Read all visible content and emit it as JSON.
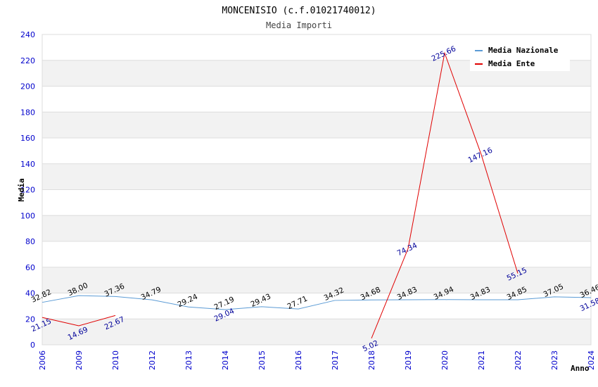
{
  "chart_data": {
    "type": "line",
    "title": "MONCENISIO (c.f.01021740012)",
    "subtitle": "Media Importi",
    "xlabel": "Anno",
    "ylabel": "Media",
    "ylim": [
      0,
      240
    ],
    "yticks": [
      0,
      20,
      40,
      60,
      80,
      100,
      120,
      140,
      160,
      180,
      200,
      220,
      240
    ],
    "categories": [
      "2006",
      "2009",
      "2010",
      "2012",
      "2013",
      "2014",
      "2015",
      "2016",
      "2017",
      "2018",
      "2019",
      "2020",
      "2021",
      "2022",
      "2023",
      "2024"
    ],
    "series": [
      {
        "name": "Media Nazionale",
        "color": "#5b9bd5",
        "values": [
          32.82,
          38.0,
          37.36,
          34.79,
          29.24,
          27.19,
          29.43,
          27.71,
          34.32,
          34.68,
          34.83,
          34.94,
          34.83,
          34.85,
          37.05,
          36.46
        ],
        "labels": [
          "32.82",
          "38.00",
          "37.36",
          "34.79",
          "29.24",
          "27.19",
          "29.43",
          "27.71",
          "34.32",
          "34.68",
          "34.83",
          "34.94",
          "34.83",
          "34.85",
          "37.05",
          "36.46"
        ]
      },
      {
        "name": "Media Ente",
        "color": "#e00000",
        "values": [
          21.15,
          14.69,
          22.67,
          null,
          null,
          29.04,
          null,
          null,
          null,
          5.02,
          74.34,
          225.66,
          147.16,
          55.15,
          null,
          31.58
        ],
        "labels": [
          "21.15",
          "14.69",
          "22.67",
          null,
          null,
          "29.04",
          null,
          null,
          null,
          "5.02",
          "74.34",
          "225.66",
          "147.16",
          "55.15",
          null,
          "31.58"
        ]
      }
    ],
    "grid": true,
    "legend_position": "top-right"
  }
}
